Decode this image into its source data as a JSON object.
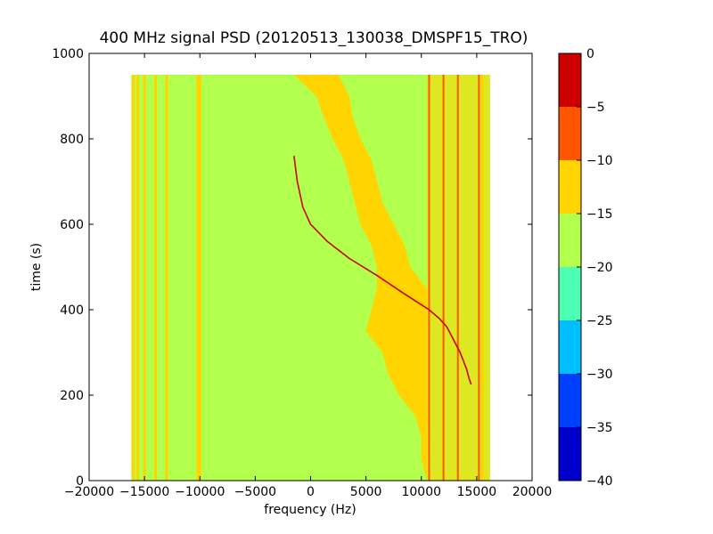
{
  "chart_data": {
    "type": "heatmap",
    "title": "400 MHz signal PSD (20120513_130038_DMSPF15_TRO)",
    "xlabel": "frequency (Hz)",
    "ylabel": "time (s)",
    "xlim": [
      -20000,
      20000
    ],
    "ylim": [
      0,
      1000
    ],
    "xticks": [
      -20000,
      -15000,
      -10000,
      -5000,
      0,
      5000,
      10000,
      15000,
      20000
    ],
    "xtick_labels": [
      "−20000",
      "−15000",
      "−10000",
      "−5000",
      "0",
      "5000",
      "10000",
      "15000",
      "20000"
    ],
    "yticks": [
      0,
      200,
      400,
      600,
      800,
      1000
    ],
    "ytick_labels": [
      "0",
      "200",
      "400",
      "600",
      "800",
      "1000"
    ],
    "data_extent": {
      "freq_min": -16200,
      "freq_max": 16200,
      "time_min": 0,
      "time_max": 950
    },
    "background_level_band": [
      -20,
      -15
    ],
    "colorbar": {
      "levels": [
        -40,
        -35,
        -30,
        -25,
        -20,
        -15,
        -10,
        -5,
        0
      ],
      "tick_labels": [
        "−40",
        "−35",
        "−30",
        "−25",
        "−20",
        "−15",
        "−10",
        "−5",
        "0"
      ],
      "colors": [
        "#0000cd",
        "#0040ff",
        "#00bfff",
        "#4dffb3",
        "#b3ff4d",
        "#ffd400",
        "#ff5500",
        "#cd0000"
      ]
    },
    "noise_band_edge": {
      "time": [
        950,
        900,
        850,
        800,
        750,
        700,
        650,
        600,
        550,
        500,
        450,
        400,
        350,
        300,
        250,
        200,
        150,
        100,
        50,
        0
      ],
      "freq_left": [
        -1500,
        500,
        1200,
        2000,
        3000,
        3500,
        4000,
        4500,
        5500,
        6000,
        6000,
        5500,
        5000,
        6500,
        7000,
        8000,
        9500,
        10000,
        10000,
        10500
      ],
      "freq_right": [
        2500,
        3500,
        3800,
        4500,
        5500,
        6000,
        6500,
        7500,
        8500,
        9000,
        10500,
        10500,
        10500,
        10500,
        10500,
        10500,
        10500,
        10500,
        10500,
        10500
      ]
    },
    "doppler_trace": {
      "time": [
        760,
        700,
        640,
        600,
        560,
        520,
        480,
        440,
        420,
        400,
        380,
        360,
        340,
        320,
        300,
        280,
        260,
        240,
        225
      ],
      "freq": [
        -1500,
        -1200,
        -700,
        0,
        1500,
        3500,
        6000,
        8300,
        9500,
        10700,
        11600,
        12300,
        12700,
        13100,
        13500,
        13800,
        14100,
        14300,
        14500
      ]
    },
    "vertical_lines": [
      {
        "freq": -16000,
        "level": "-15 to -10"
      },
      {
        "freq": -15600,
        "level": "-15 to -10"
      },
      {
        "freq": -15000,
        "level": "-15 to -10"
      },
      {
        "freq": -14000,
        "level": "-15 to -10"
      },
      {
        "freq": -13000,
        "level": "-15 to -10"
      },
      {
        "freq": -10200,
        "level": "-15 to -10"
      },
      {
        "freq": -10000,
        "level": "-15 to -10"
      },
      {
        "freq": 10700,
        "level": "-5 to 0"
      },
      {
        "freq": 12000,
        "level": "-5 to 0"
      },
      {
        "freq": 13300,
        "level": "-5 to 0"
      },
      {
        "freq": 15200,
        "level": "-5 to 0"
      },
      {
        "freq": 15500,
        "level": "-15 to -10"
      }
    ],
    "grid": false,
    "legend": "colorbar-right"
  }
}
